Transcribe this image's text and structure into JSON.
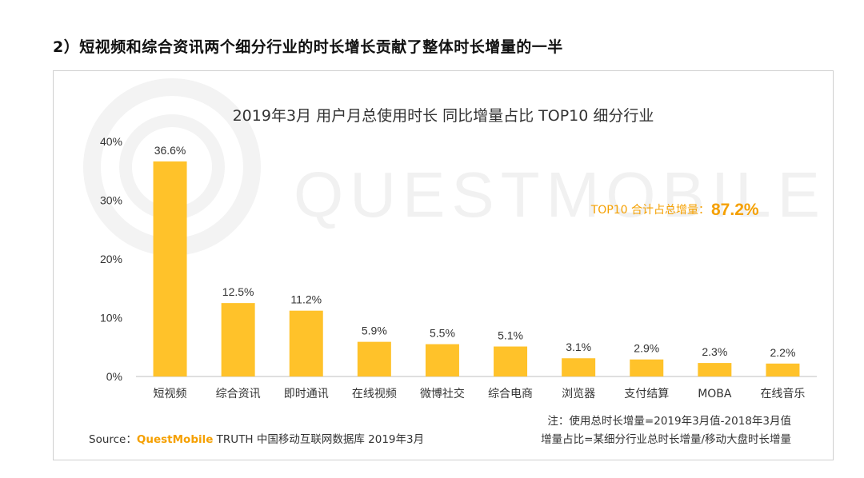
{
  "heading": "2）短视频和综合资讯两个细分行业的时长增长贡献了整体时长增量的一半",
  "watermark": "QUESTMOBILE",
  "chart_data": {
    "type": "bar",
    "title": "2019年3月 用户月总使用时长 同比增量占比 TOP10 细分行业",
    "categories": [
      "短视频",
      "综合资讯",
      "即时通讯",
      "在线视频",
      "微博社交",
      "综合电商",
      "浏览器",
      "支付结算",
      "MOBA",
      "在线音乐"
    ],
    "values": [
      36.6,
      12.5,
      11.2,
      5.9,
      5.5,
      5.1,
      3.1,
      2.9,
      2.3,
      2.2
    ],
    "value_labels": [
      "36.6%",
      "12.5%",
      "11.2%",
      "5.9%",
      "5.5%",
      "5.1%",
      "3.1%",
      "2.9%",
      "2.3%",
      "2.2%"
    ],
    "yticks": [
      0,
      10,
      20,
      30,
      40
    ],
    "ytick_labels": [
      "0%",
      "10%",
      "20%",
      "30%",
      "40%"
    ],
    "ylim": [
      0,
      40
    ],
    "xlabel": "",
    "ylabel": "",
    "bar_color": "#ffc22a",
    "summary": {
      "label": "TOP10 合计占总增量：",
      "value": "87.2%"
    }
  },
  "footer": {
    "source_prefix": "Source：",
    "source_brand": "QuestMobile",
    "source_rest": " TRUTH 中国移动互联网数据库 2019年3月",
    "note1": "注：使用总时长增量=2019年3月值-2018年3月值",
    "note2": "增量占比=某细分行业总时长增量/移动大盘时长增量"
  }
}
